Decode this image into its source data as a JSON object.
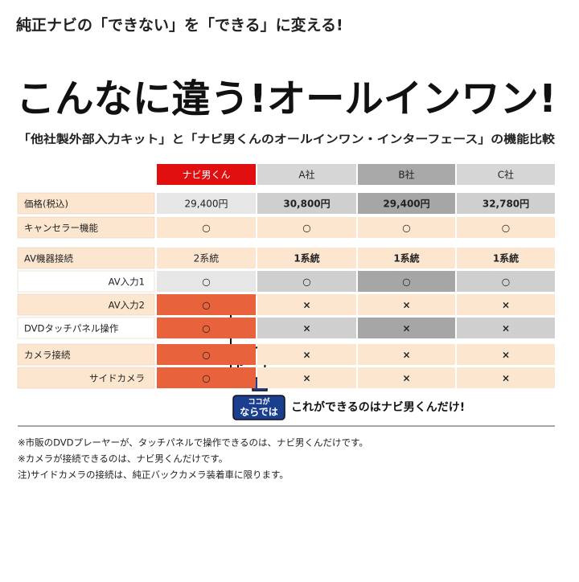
{
  "header": {
    "tagline": "純正ナビの「できない」を「できる」に変える!",
    "title": "こんなに違う!オールインワン!",
    "subtitle": "「他社製外部入力キット」と「ナビ男くんのオールインワン・インターフェース」の機能比較"
  },
  "table": {
    "columns": [
      "ナビ男くん",
      "A社",
      "B社",
      "C社"
    ],
    "rows": [
      {
        "label": "価格(税込)",
        "cells": [
          "29,400円",
          "30,800円",
          "29,400円",
          "32,780円"
        ]
      },
      {
        "label": "キャンセラー機能",
        "cells": [
          "○",
          "○",
          "○",
          "○"
        ]
      },
      {
        "label": "AV機器接続",
        "cells": [
          "2系統",
          "1系統",
          "1系統",
          "1系統"
        ]
      },
      {
        "label": "AV入力1",
        "cells": [
          "○",
          "○",
          "○",
          "○"
        ]
      },
      {
        "label": "AV入力2",
        "cells": [
          "○",
          "×",
          "×",
          "×"
        ]
      },
      {
        "label": "DVDタッチパネル操作",
        "cells": [
          "○",
          "×",
          "×",
          "×"
        ]
      },
      {
        "label": "カメラ接続",
        "cells": [
          "○",
          "×",
          "×",
          "×"
        ]
      },
      {
        "label": "サイドカメラ",
        "cells": [
          "○",
          "×",
          "×",
          "×"
        ]
      }
    ]
  },
  "callout": {
    "badge": [
      "ココが",
      "ならでは"
    ],
    "text": "これができるのはナビ男くんだけ!"
  },
  "notes": [
    "※市販のDVDプレーヤーが、タッチパネルで操作できるのは、ナビ男くんだけです。",
    "※カメラが接続できるのは、ナビ男くんだけです。",
    "注)サイドカメラの接続は、純正バックカメラ装着車に限ります。"
  ]
}
